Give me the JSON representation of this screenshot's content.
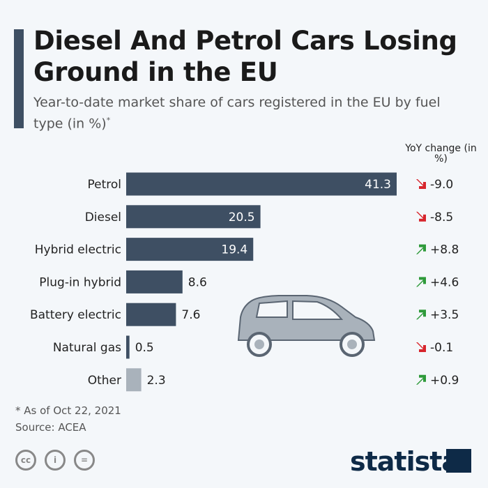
{
  "header": {
    "title": "Diesel And Petrol Cars Losing Ground in the EU",
    "subtitle": "Year-to-date market share of cars registered in the EU by fuel type (in %)",
    "subtitle_mark": "*"
  },
  "chart_data": {
    "type": "bar",
    "orientation": "horizontal",
    "categories": [
      "Petrol",
      "Diesel",
      "Hybrid electric",
      "Plug-in hybrid",
      "Battery electric",
      "Natural gas",
      "Other"
    ],
    "values": [
      41.3,
      20.5,
      19.4,
      8.6,
      7.6,
      0.5,
      2.3
    ],
    "value_labels": [
      "41.3",
      "20.5",
      "19.4",
      "8.6",
      "7.6",
      "0.5",
      "2.3"
    ],
    "yoy_header": "YoY change (in %)",
    "yoy_change": [
      "-9.0",
      "-8.5",
      "+8.8",
      "+4.6",
      "+3.5",
      "-0.1",
      "+0.9"
    ],
    "colors": {
      "bar": "#3e4f63",
      "other": "#a9b2bb",
      "down": "#d7252c",
      "up": "#2e9a3a"
    }
  },
  "footer": {
    "note": "* As of Oct 22, 2021",
    "source": "Source: ACEA",
    "license_icons": [
      "cc-icon",
      "attribution-icon",
      "no-derivatives-icon"
    ],
    "brand": "statista"
  }
}
